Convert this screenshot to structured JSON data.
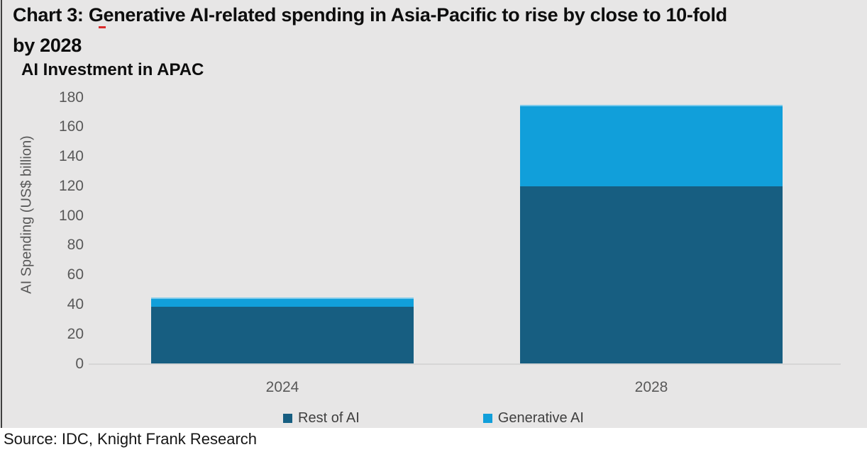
{
  "header": {
    "title_line1": "Chart 3: Generative AI-related spending in Asia-Pacific to rise by close to 10-fold",
    "title_line2": "by 2028",
    "subtitle": "AI Investment in APAC"
  },
  "chart_data": {
    "type": "bar",
    "stacked": true,
    "title": "AI Investment in APAC",
    "categories": [
      "2024",
      "2028"
    ],
    "series": [
      {
        "name": "Rest of AI",
        "color": "#175E81",
        "values": [
          38.4,
          120
        ]
      },
      {
        "name": "Generative AI",
        "color": "#119FDA",
        "values": [
          6.6,
          55
        ]
      }
    ],
    "xlabel": "",
    "ylabel": "AI Spending (US$ billion)",
    "ylim": [
      0,
      180
    ],
    "ytick_step": 20,
    "grid": false,
    "legend_position": "bottom"
  },
  "footer": {
    "source": "Source: IDC, Knight Frank Research"
  },
  "colors": {
    "background": "#E7E6E6",
    "footer_background": "#FFFFFF",
    "rest_of_ai": "#175E81",
    "generative_ai": "#119FDA",
    "axis_text": "#595959",
    "legend_text": "#404040",
    "title_text": "#0D0D0D",
    "axis_baseline": "#D6D6D6",
    "spellcheck_red": "#D92B2B",
    "panel_left_border": "#404040"
  }
}
